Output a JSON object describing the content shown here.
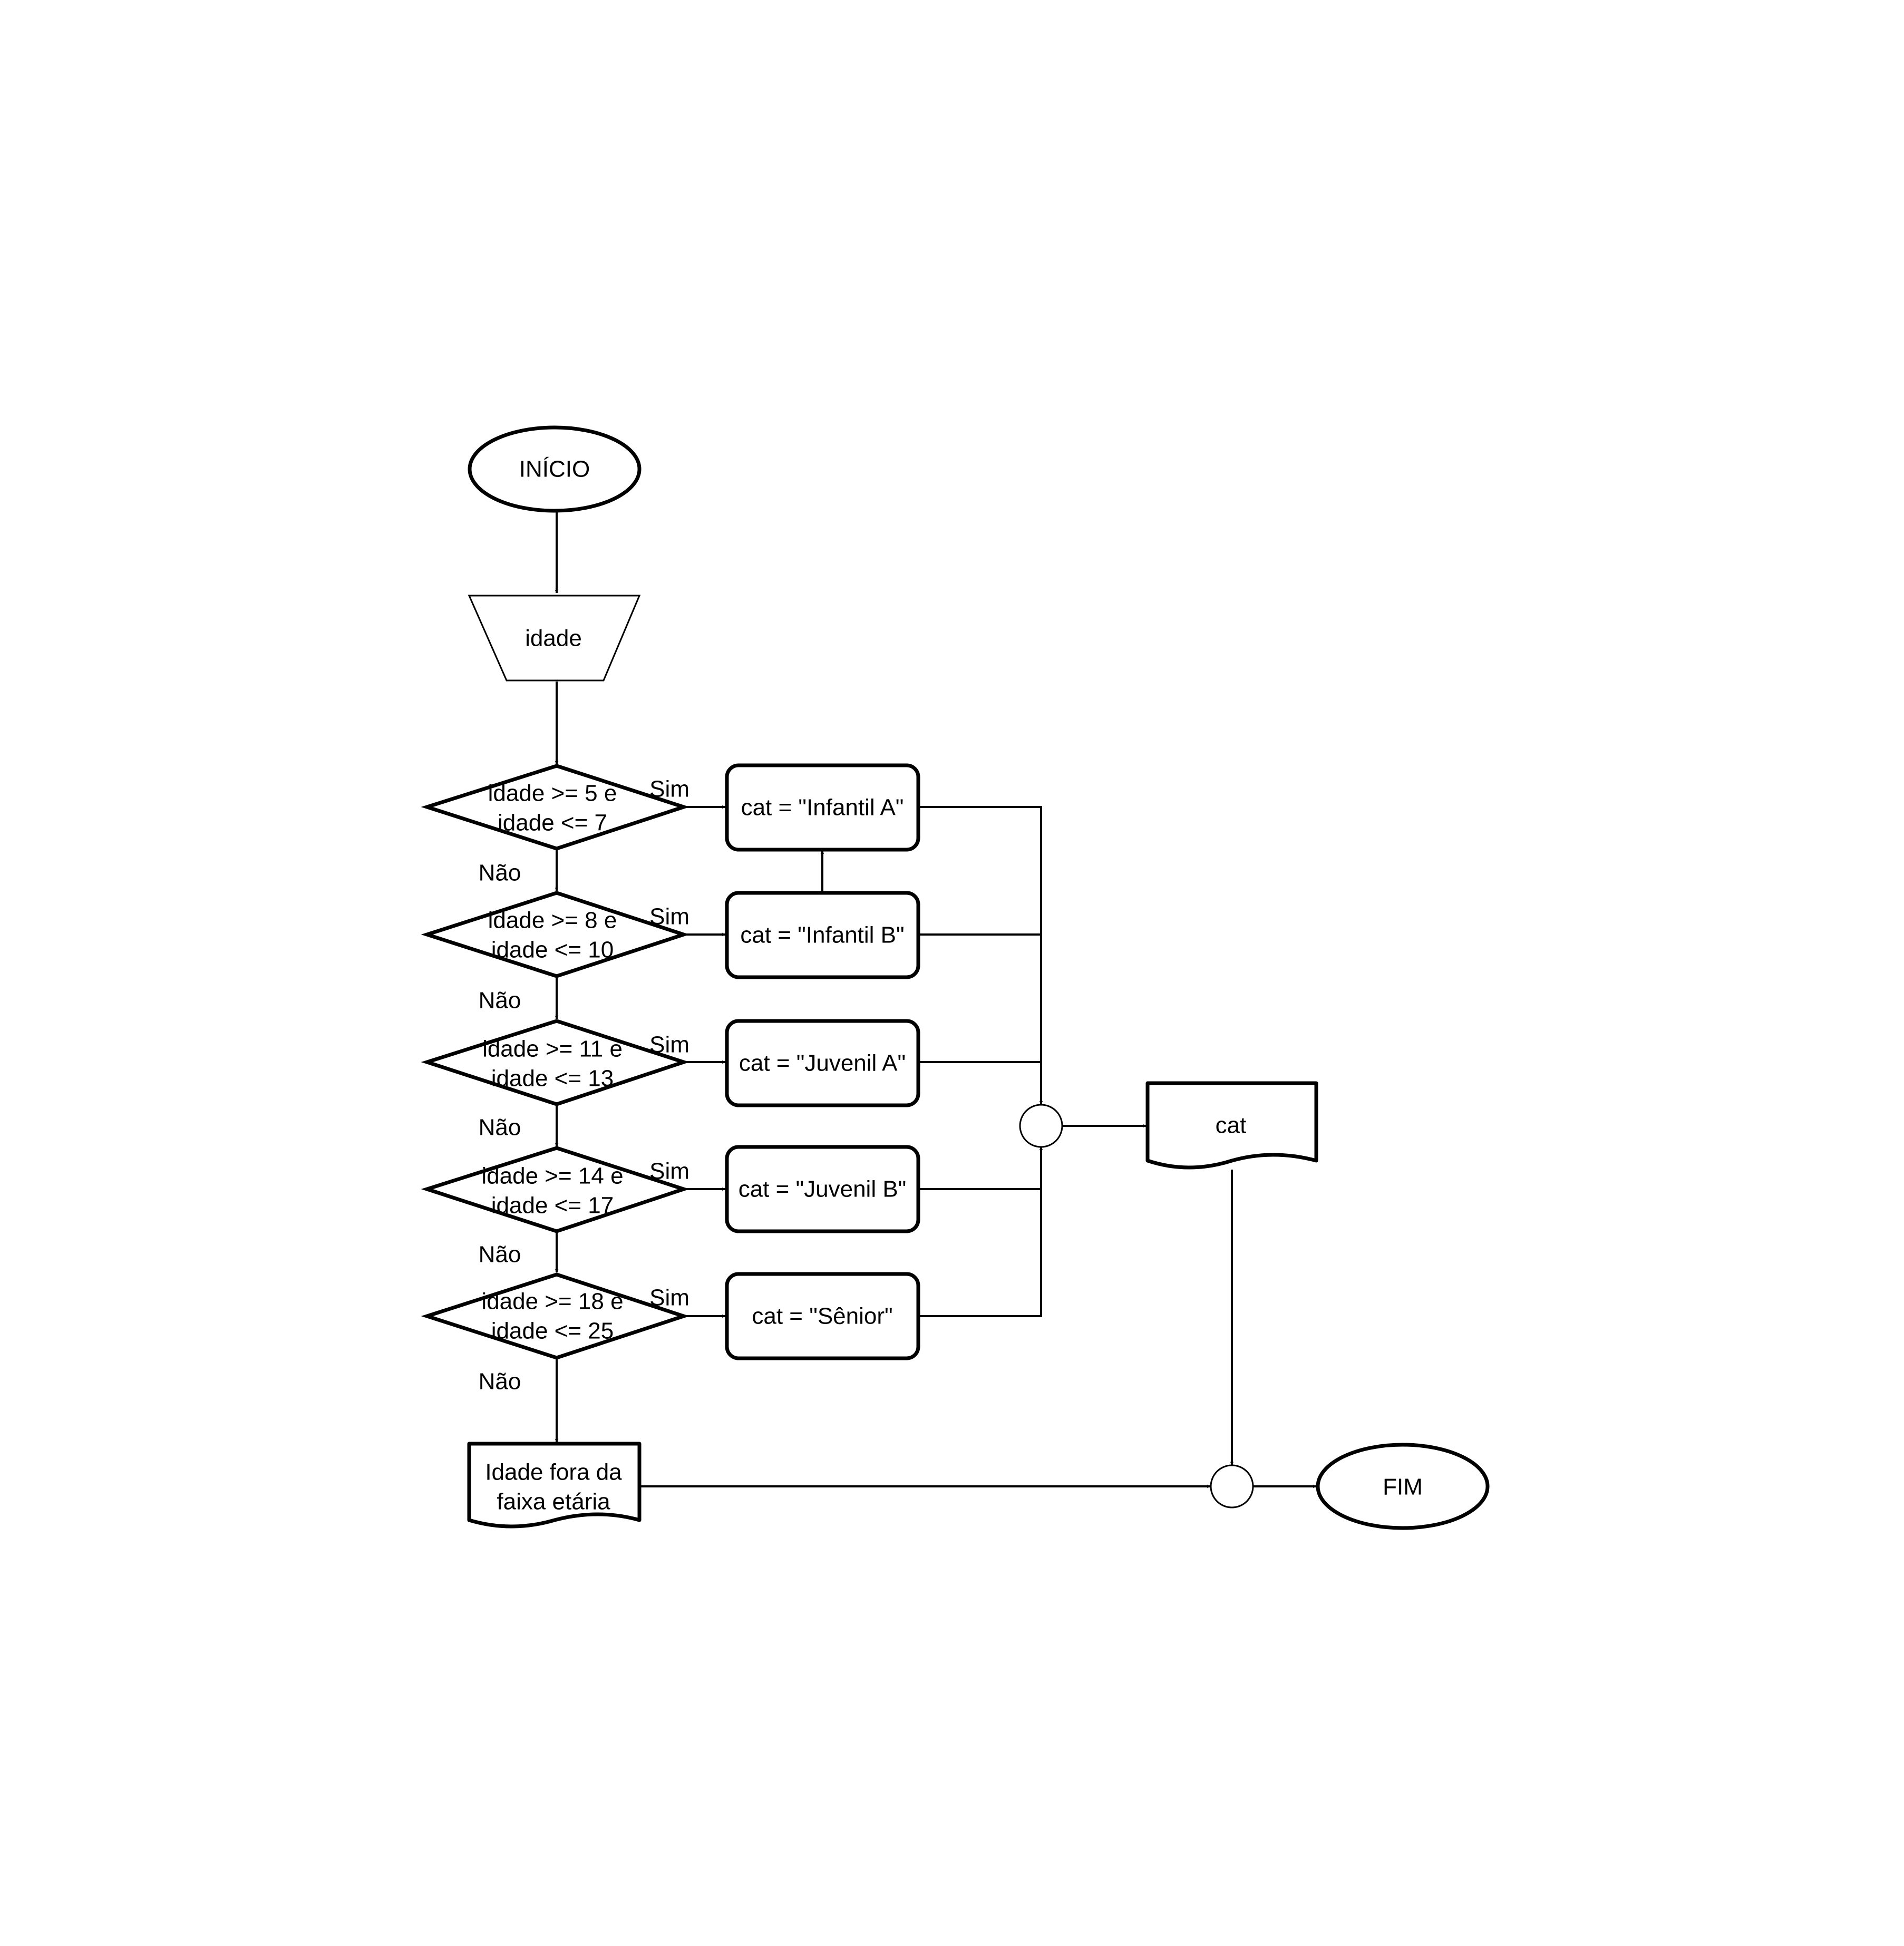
{
  "diagram": {
    "start": "INÍCIO",
    "input": "idade",
    "decisions": [
      {
        "line1": "idade >= 5 e",
        "line2": "idade <= 7",
        "yes": "Sim",
        "no": "Não"
      },
      {
        "line1": "idade >= 8 e",
        "line2": "idade <= 10",
        "yes": "Sim",
        "no": "Não"
      },
      {
        "line1": "idade >= 11 e",
        "line2": "idade <= 13",
        "yes": "Sim",
        "no": "Não"
      },
      {
        "line1": "idade >= 14 e",
        "line2": "idade <= 17",
        "yes": "Sim",
        "no": "Não"
      },
      {
        "line1": "idade >= 18 e",
        "line2": "idade <= 25",
        "yes": "Sim",
        "no": "Não"
      }
    ],
    "assignments": [
      "cat = \"Infantil A\"",
      "cat = \"Infantil B\"",
      "cat = \"Juvenil A\"",
      "cat = \"Juvenil B\"",
      "cat = \"Sênior\""
    ],
    "output_cat": "cat",
    "out_of_range": {
      "line1": "Idade fora da",
      "line2": "faixa etária"
    },
    "end": "FIM"
  }
}
